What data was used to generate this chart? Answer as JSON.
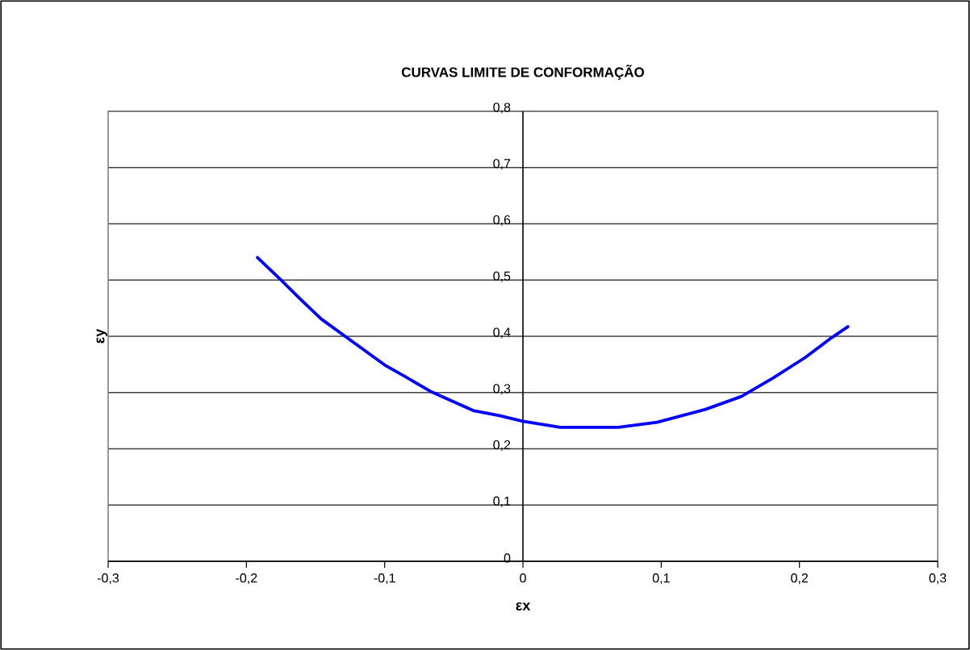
{
  "chart_data": {
    "type": "line",
    "title": "CURVAS LIMITE DE CONFORMAÇÃO",
    "xlabel": "εx",
    "ylabel": "εy",
    "xlim": [
      -0.3,
      0.3
    ],
    "ylim": [
      0,
      0.8
    ],
    "xticks": [
      {
        "value": -0.3,
        "label": "-0,3"
      },
      {
        "value": -0.2,
        "label": "-0,2"
      },
      {
        "value": -0.1,
        "label": "-0,1"
      },
      {
        "value": 0,
        "label": "0"
      },
      {
        "value": 0.1,
        "label": "0,1"
      },
      {
        "value": 0.2,
        "label": "0,2"
      },
      {
        "value": 0.3,
        "label": "0,3"
      }
    ],
    "yticks": [
      {
        "value": 0,
        "label": "0"
      },
      {
        "value": 0.1,
        "label": "0,1"
      },
      {
        "value": 0.2,
        "label": "0,2"
      },
      {
        "value": 0.3,
        "label": "0,3"
      },
      {
        "value": 0.4,
        "label": "0,4"
      },
      {
        "value": 0.5,
        "label": "0,5"
      },
      {
        "value": 0.6,
        "label": "0,6"
      },
      {
        "value": 0.7,
        "label": "0,7"
      },
      {
        "value": 0.8,
        "label": "0,8"
      }
    ],
    "grid": "y",
    "marker": "none",
    "line_style": "solid",
    "series": [
      {
        "color": "#0000ff",
        "x": [
          -0.192,
          -0.175,
          -0.161,
          -0.146,
          -0.127,
          -0.1,
          -0.085,
          -0.066,
          -0.036,
          -0.017,
          0,
          0.027,
          0.069,
          0.097,
          0.132,
          0.158,
          0.181,
          0.204,
          0.223,
          0.235
        ],
        "values": [
          0.54,
          0.5,
          0.466,
          0.431,
          0.397,
          0.349,
          0.328,
          0.301,
          0.268,
          0.259,
          0.249,
          0.238,
          0.238,
          0.247,
          0.27,
          0.293,
          0.326,
          0.362,
          0.397,
          0.417
        ]
      }
    ]
  }
}
